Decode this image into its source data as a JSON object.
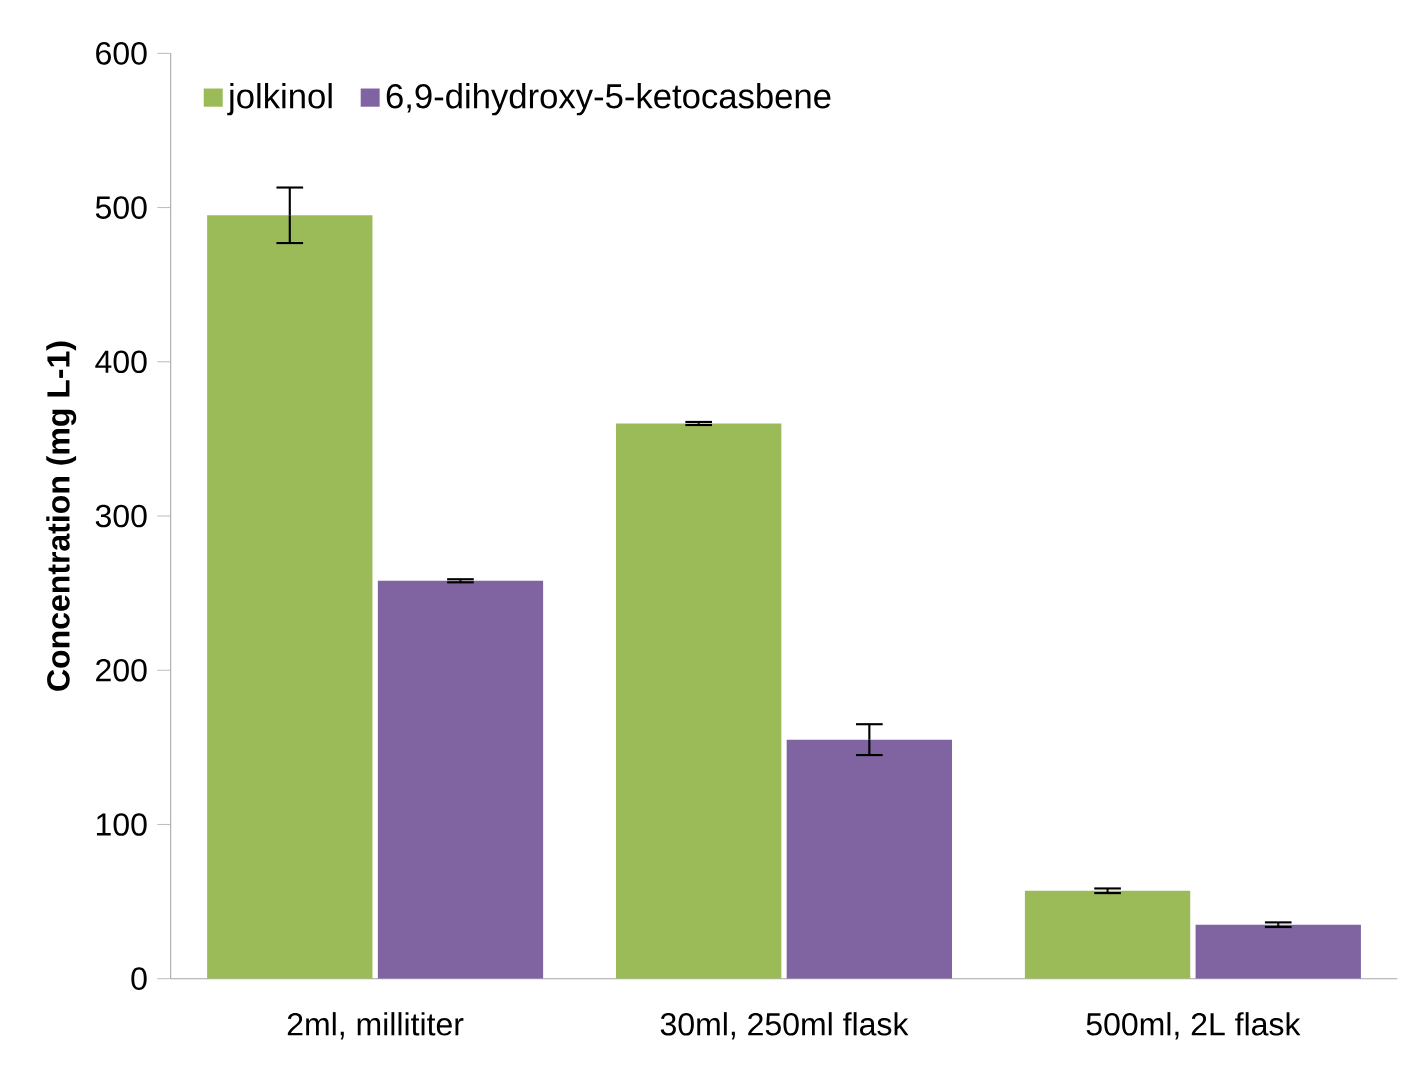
{
  "chart_data": {
    "type": "bar",
    "ylabel": "Concentration (mg L-1)",
    "categories": [
      "2ml, millititer",
      "30ml, 250ml flask",
      "500ml, 2L flask"
    ],
    "series": [
      {
        "name": "jolkinol",
        "color": "#9bbb59",
        "values": [
          495,
          360,
          57
        ],
        "errors": [
          18,
          1,
          1.5
        ]
      },
      {
        "name": "6,9-dihydroxy-5-ketocasbene",
        "color": "#8064a2",
        "values": [
          258,
          155,
          35
        ],
        "errors": [
          1,
          10,
          1.5
        ]
      }
    ],
    "ylim": [
      0,
      600
    ],
    "yticks": [
      0,
      100,
      200,
      300,
      400,
      500,
      600
    ],
    "grid": false,
    "legend": "top left"
  }
}
